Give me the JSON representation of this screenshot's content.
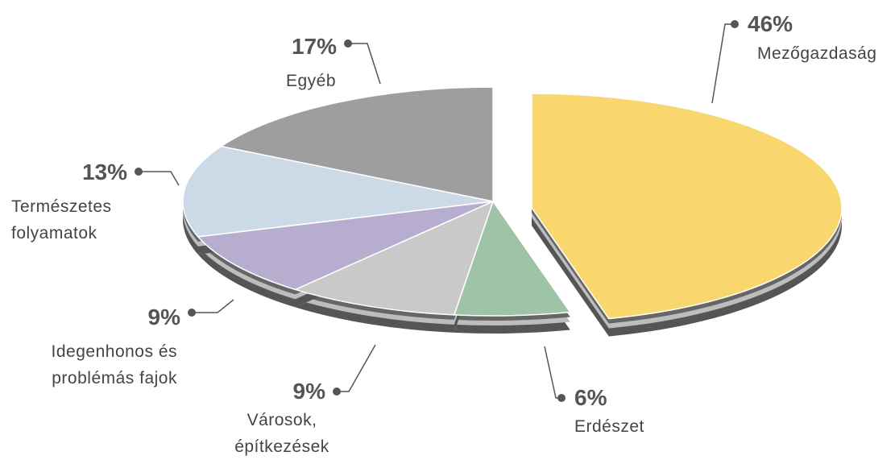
{
  "chart_data": {
    "type": "pie",
    "categories": [
      "Mezőgazdaság",
      "Erdészet",
      "Városok, építkezések",
      "Idegenhonos és problémás fajok",
      "Természetes folyamatok",
      "Egyéb"
    ],
    "values": [
      46,
      6,
      9,
      9,
      13,
      17
    ],
    "value_labels": [
      "46%",
      "6%",
      "9%",
      "9%",
      "13%",
      "17%"
    ],
    "colors": [
      "#f9d66e",
      "#9fc3a6",
      "#c9c9c9",
      "#b7aecf",
      "#ccdae7",
      "#9e9e9e"
    ]
  }
}
